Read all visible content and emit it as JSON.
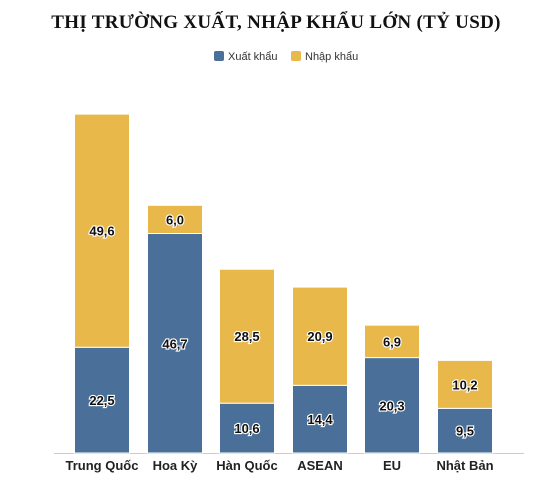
{
  "chart_data": {
    "type": "bar",
    "stacked": true,
    "title": "THỊ TRƯỜNG XUẤT, NHẬP KHẨU LỚN (TỶ USD)",
    "categories": [
      "Trung Quốc",
      "Hoa Kỳ",
      "Hàn Quốc",
      "ASEAN",
      "EU",
      "Nhật Bản"
    ],
    "series": [
      {
        "name": "Xuất khẩu",
        "color": "#4a7099",
        "values": [
          22.5,
          46.7,
          10.6,
          14.4,
          20.3,
          9.5
        ],
        "labels": [
          "22,5",
          "46,7",
          "10,6",
          "14,4",
          "20,3",
          "9,5"
        ]
      },
      {
        "name": "Nhập khẩu",
        "color": "#e8b84b",
        "values": [
          49.6,
          6.0,
          28.5,
          20.9,
          6.9,
          10.2
        ],
        "labels": [
          "49,6",
          "6,0",
          "28,5",
          "20,9",
          "6,9",
          "10,2"
        ]
      }
    ],
    "legend_position": "top-center",
    "grid": false,
    "ylim": [
      0,
      80
    ]
  }
}
